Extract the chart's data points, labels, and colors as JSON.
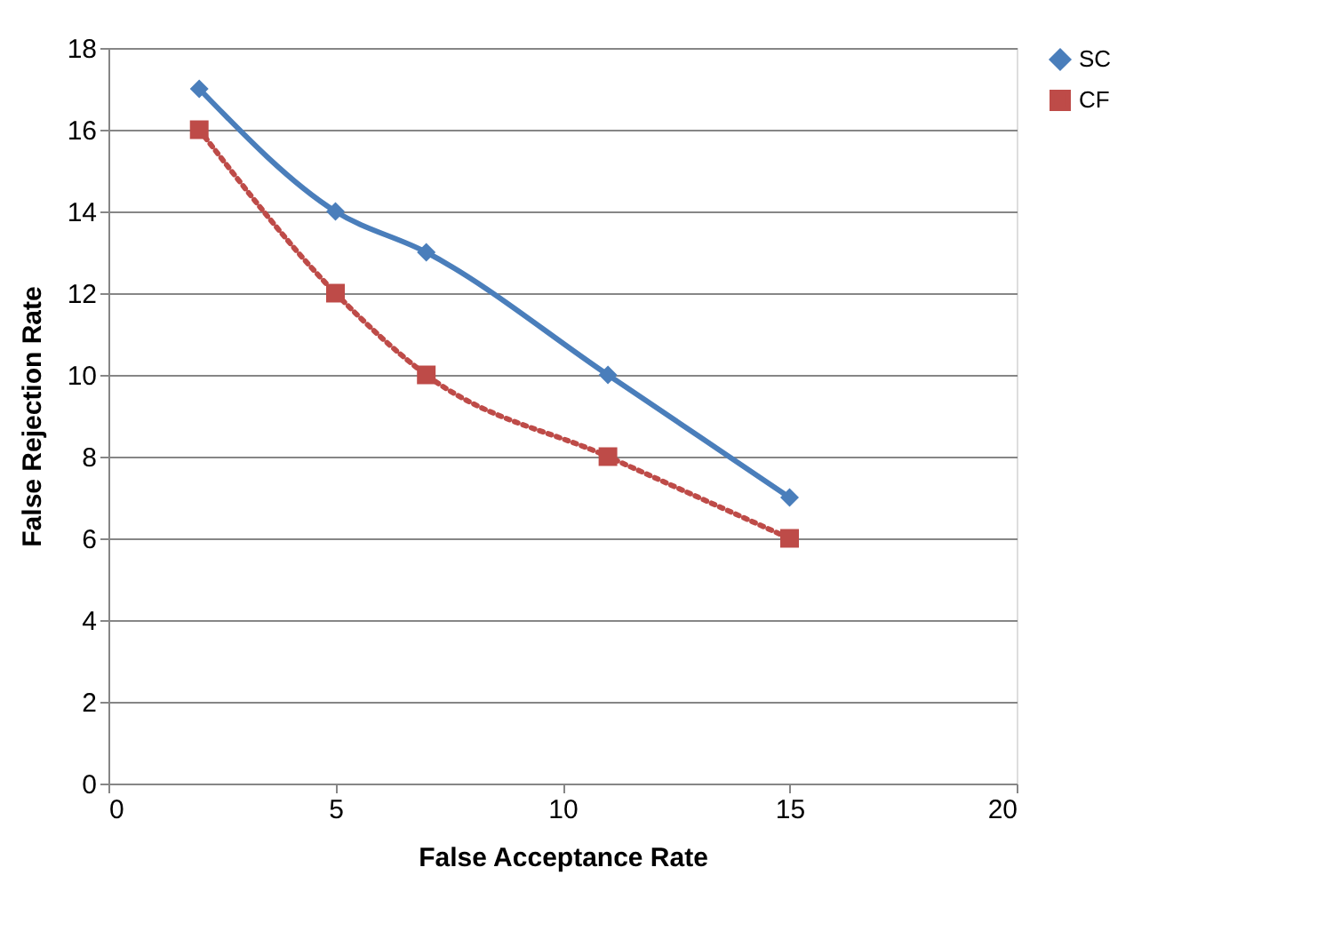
{
  "chart_data": {
    "type": "line",
    "xlabel": "False Acceptance Rate",
    "ylabel": "False Rejection Rate",
    "x": [
      2,
      5,
      7,
      11,
      15
    ],
    "series": [
      {
        "name": "SC",
        "color": "#4a7ebb",
        "values": [
          17,
          14,
          13,
          10,
          7
        ],
        "marker": "diamond",
        "line_style": "solid"
      },
      {
        "name": "CF",
        "color": "#be4b48",
        "values": [
          16,
          12,
          10,
          8,
          6
        ],
        "marker": "square",
        "line_style": "dotted"
      }
    ],
    "xlim": [
      0,
      20
    ],
    "xticks": [
      0,
      5,
      10,
      15,
      20
    ],
    "ylim": [
      0,
      18
    ],
    "yticks": [
      0,
      2,
      4,
      6,
      8,
      10,
      12,
      14,
      16,
      18
    ],
    "grid": "y",
    "legend": "right"
  }
}
